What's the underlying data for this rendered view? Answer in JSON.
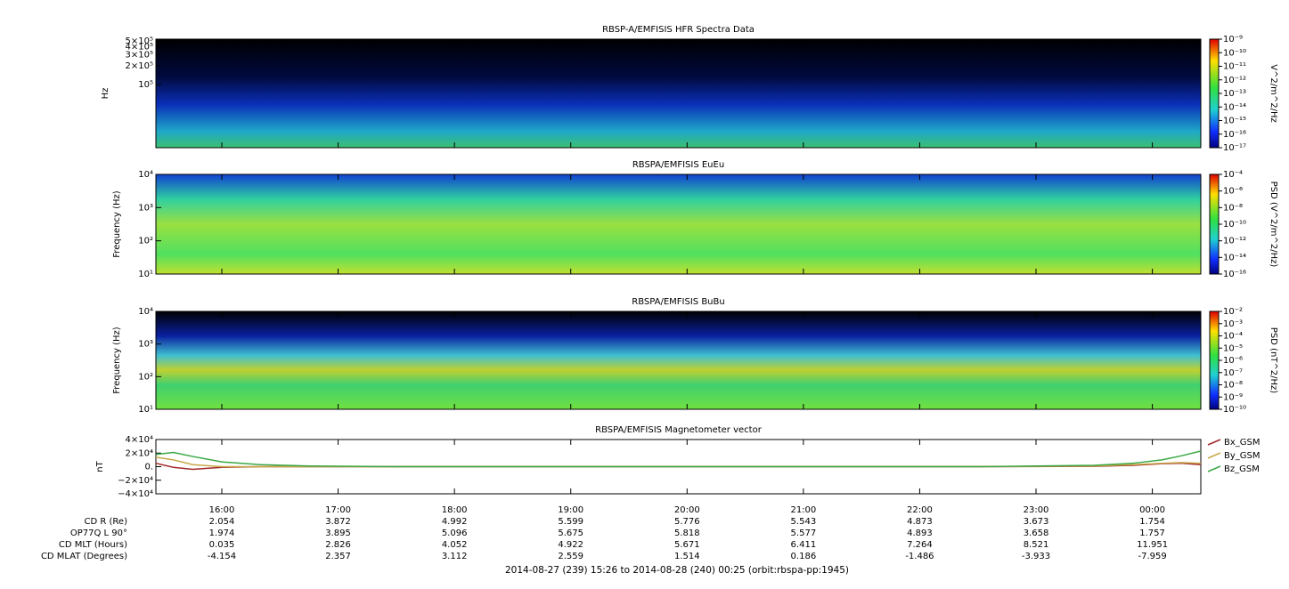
{
  "chart_data": [
    {
      "type": "spectrogram",
      "title": "RBSP-A/EMFISIS  HFR Spectra Data",
      "ylabel": "Hz",
      "log_y": true,
      "ylim": [
        10000,
        530000
      ],
      "yticks": [
        {
          "value": 100000,
          "label": "10⁵"
        },
        {
          "value": 200000,
          "label": "2×10⁵"
        },
        {
          "value": 300000,
          "label": "3×10⁵"
        },
        {
          "value": 400000,
          "label": "4×10⁵"
        },
        {
          "value": 500000,
          "label": "5×10⁵"
        }
      ],
      "colorbar": {
        "label": "V^2/m^2/Hz",
        "clim": [
          1e-17,
          1e-09
        ],
        "ticks": [
          {
            "value": 1e-09,
            "label": "10⁻⁹"
          },
          {
            "value": 1e-10,
            "label": "10⁻¹⁰"
          },
          {
            "value": 1e-11,
            "label": "10⁻¹¹"
          },
          {
            "value": 1e-12,
            "label": "10⁻¹²"
          },
          {
            "value": 1e-13,
            "label": "10⁻¹³"
          },
          {
            "value": 1e-14,
            "label": "10⁻¹⁴"
          },
          {
            "value": 1e-15,
            "label": "10⁻¹⁵"
          },
          {
            "value": 1e-16,
            "label": "10⁻¹⁶"
          },
          {
            "value": 1e-17,
            "label": "10⁻¹⁷"
          }
        ]
      }
    },
    {
      "type": "spectrogram",
      "title": "RBSPA/EMFISIS  EuEu",
      "ylabel": "Frequency (Hz)",
      "log_y": true,
      "ylim": [
        10,
        10000
      ],
      "yticks": [
        {
          "value": 10,
          "label": "10¹"
        },
        {
          "value": 100,
          "label": "10²"
        },
        {
          "value": 1000,
          "label": "10³"
        },
        {
          "value": 10000,
          "label": "10⁴"
        }
      ],
      "colorbar": {
        "label": "PSD (V^2/m^2/Hz)",
        "clim": [
          1e-16,
          0.0001
        ],
        "ticks": [
          {
            "value": 0.0001,
            "label": "10⁻⁴"
          },
          {
            "value": 1e-06,
            "label": "10⁻⁶"
          },
          {
            "value": 1e-08,
            "label": "10⁻⁸"
          },
          {
            "value": 1e-10,
            "label": "10⁻¹⁰"
          },
          {
            "value": 1e-12,
            "label": "10⁻¹²"
          },
          {
            "value": 1e-14,
            "label": "10⁻¹⁴"
          },
          {
            "value": 1e-16,
            "label": "10⁻¹⁶"
          }
        ]
      }
    },
    {
      "type": "spectrogram",
      "title": "RBSPA/EMFISIS  BuBu",
      "ylabel": "Frequency (Hz)",
      "log_y": true,
      "ylim": [
        10,
        10000
      ],
      "yticks": [
        {
          "value": 10,
          "label": "10¹"
        },
        {
          "value": 100,
          "label": "10²"
        },
        {
          "value": 1000,
          "label": "10³"
        },
        {
          "value": 10000,
          "label": "10⁴"
        }
      ],
      "colorbar": {
        "label": "PSD (nT^2/Hz)",
        "clim": [
          1e-10,
          0.01
        ],
        "ticks": [
          {
            "value": 0.01,
            "label": "10⁻²"
          },
          {
            "value": 0.001,
            "label": "10⁻³"
          },
          {
            "value": 0.0001,
            "label": "10⁻⁴"
          },
          {
            "value": 1e-05,
            "label": "10⁻⁵"
          },
          {
            "value": 1e-06,
            "label": "10⁻⁶"
          },
          {
            "value": 1e-07,
            "label": "10⁻⁷"
          },
          {
            "value": 1e-08,
            "label": "10⁻⁸"
          },
          {
            "value": 1e-09,
            "label": "10⁻⁹"
          },
          {
            "value": 1e-10,
            "label": "10⁻¹⁰"
          }
        ]
      }
    },
    {
      "type": "line",
      "title": "RBSPA/EMFISIS  Magnetometer vector",
      "ylabel": "nT",
      "ylim": [
        -40000,
        40000
      ],
      "yticks": [
        {
          "value": 40000,
          "label": "4×10⁴"
        },
        {
          "value": 20000,
          "label": "2×10⁴"
        },
        {
          "value": 0,
          "label": "0."
        },
        {
          "value": -20000,
          "label": "−2×10⁴"
        },
        {
          "value": -40000,
          "label": "−4×10⁴"
        }
      ],
      "x": [
        "2014-08-27T15:26",
        "2014-08-27T15:35",
        "2014-08-27T15:45",
        "2014-08-27T16:00",
        "2014-08-27T16:20",
        "2014-08-27T16:45",
        "2014-08-27T17:30",
        "2014-08-27T19:00",
        "2014-08-27T21:00",
        "2014-08-27T22:30",
        "2014-08-27T23:30",
        "2014-08-27T23:50",
        "2014-08-28T00:05",
        "2014-08-28T00:15",
        "2014-08-28T00:25"
      ],
      "series": [
        {
          "name": "Bx_GSM",
          "color": "#a0282a",
          "values": [
            5000,
            -1000,
            -4000,
            -1000,
            0,
            0,
            0,
            0,
            0,
            0,
            500,
            2000,
            4500,
            5000,
            3000
          ]
        },
        {
          "name": "By_GSM",
          "color": "#c8a84a",
          "values": [
            14000,
            10000,
            3000,
            0,
            0,
            0,
            0,
            0,
            0,
            0,
            1000,
            3000,
            5000,
            6000,
            5000
          ]
        },
        {
          "name": "Bz_GSM",
          "color": "#3aa845",
          "values": [
            18000,
            21000,
            15000,
            7000,
            3000,
            1000,
            0,
            0,
            0,
            0,
            2000,
            5000,
            10000,
            16000,
            23000
          ]
        }
      ]
    }
  ],
  "time_axis": {
    "xlim": [
      "2014-08-27T15:26",
      "2014-08-28T00:25"
    ],
    "xticks": [
      {
        "value": "2014-08-27T16:00",
        "label": "16:00"
      },
      {
        "value": "2014-08-27T17:00",
        "label": "17:00"
      },
      {
        "value": "2014-08-27T18:00",
        "label": "18:00"
      },
      {
        "value": "2014-08-27T19:00",
        "label": "19:00"
      },
      {
        "value": "2014-08-27T20:00",
        "label": "20:00"
      },
      {
        "value": "2014-08-27T21:00",
        "label": "21:00"
      },
      {
        "value": "2014-08-27T22:00",
        "label": "22:00"
      },
      {
        "value": "2014-08-27T23:00",
        "label": "23:00"
      },
      {
        "value": "2014-08-28T00:00",
        "label": "00:00"
      }
    ]
  },
  "ephemeris": [
    {
      "label": "CD R (Re)",
      "values": [
        "2.054",
        "3.872",
        "4.992",
        "5.599",
        "5.776",
        "5.543",
        "4.873",
        "3.673",
        "1.754"
      ]
    },
    {
      "label": "OP77Q L 90°",
      "values": [
        "1.974",
        "3.895",
        "5.096",
        "5.675",
        "5.818",
        "5.577",
        "4.893",
        "3.658",
        "1.757"
      ]
    },
    {
      "label": "CD MLT (Hours)",
      "values": [
        "0.035",
        "2.826",
        "4.052",
        "4.922",
        "5.671",
        "6.411",
        "7.264",
        "8.521",
        "11.951"
      ]
    },
    {
      "label": "CD MLAT (Degrees)",
      "values": [
        "-4.154",
        "2.357",
        "3.112",
        "2.559",
        "1.514",
        "0.186",
        "-1.486",
        "-3.933",
        "-7.959"
      ]
    }
  ],
  "footer": "2014-08-27 (239) 15:26 to 2014-08-28 (240) 00:25 (orbit:rbspa-pp:1945)"
}
